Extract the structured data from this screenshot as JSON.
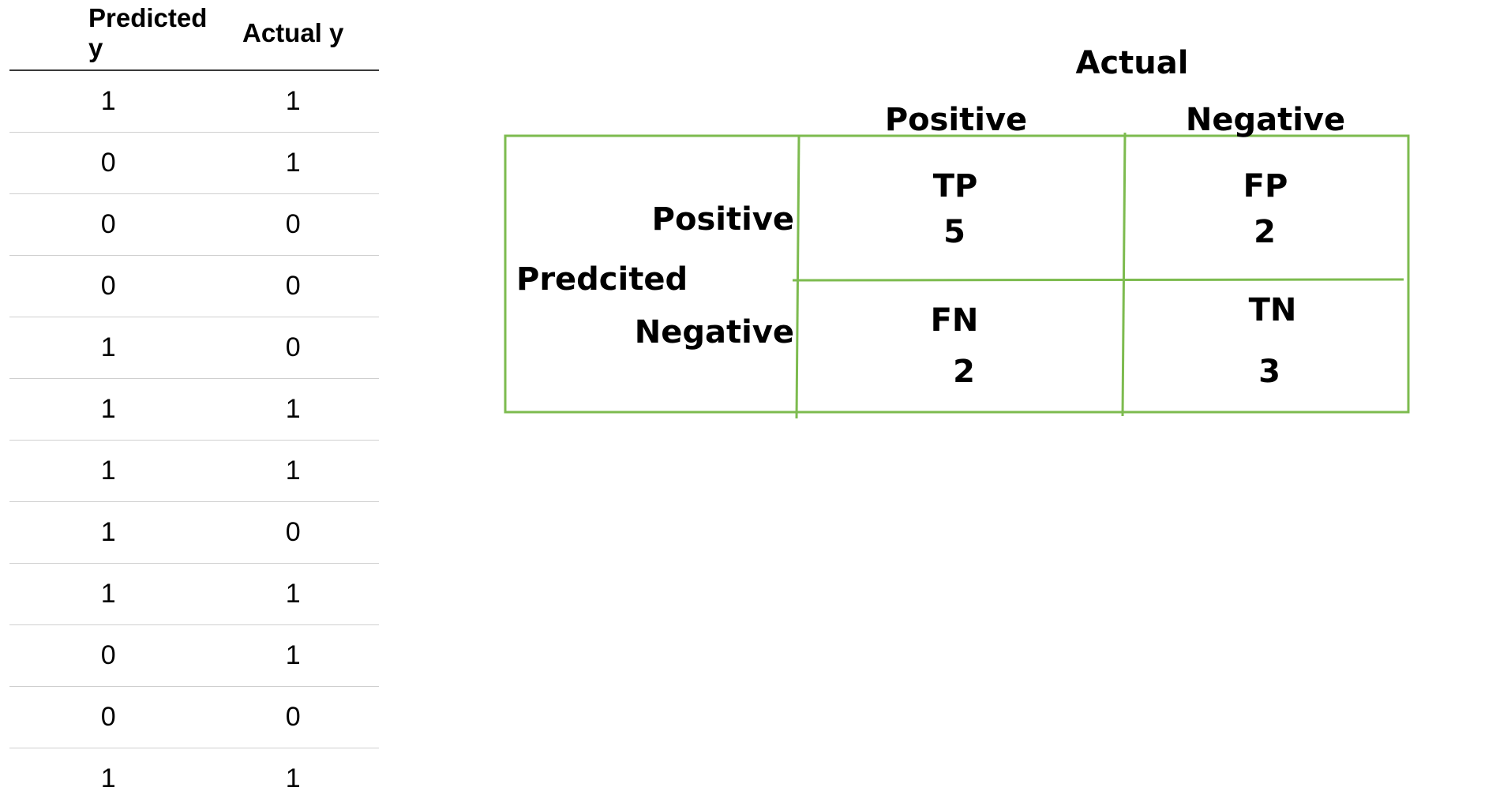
{
  "data_table": {
    "headers": [
      "Predicted y",
      "Actual y"
    ],
    "rows": [
      [
        "1",
        "1"
      ],
      [
        "0",
        "1"
      ],
      [
        "0",
        "0"
      ],
      [
        "0",
        "0"
      ],
      [
        "1",
        "0"
      ],
      [
        "1",
        "1"
      ],
      [
        "1",
        "1"
      ],
      [
        "1",
        "0"
      ],
      [
        "1",
        "1"
      ],
      [
        "0",
        "1"
      ],
      [
        "0",
        "0"
      ],
      [
        "1",
        "1"
      ]
    ]
  },
  "confusion_matrix": {
    "actual_label": "Actual",
    "predicted_label": "Predcited",
    "col_labels": [
      "Positive",
      "Negative"
    ],
    "row_labels": [
      "Positive",
      "Negative"
    ],
    "cells": {
      "tp": {
        "label": "TP",
        "value": "5"
      },
      "fp": {
        "label": "FP",
        "value": "2"
      },
      "fn": {
        "label": "FN",
        "value": "2"
      },
      "tn": {
        "label": "TN",
        "value": "3"
      }
    },
    "border_color": "#7dbb4f"
  }
}
